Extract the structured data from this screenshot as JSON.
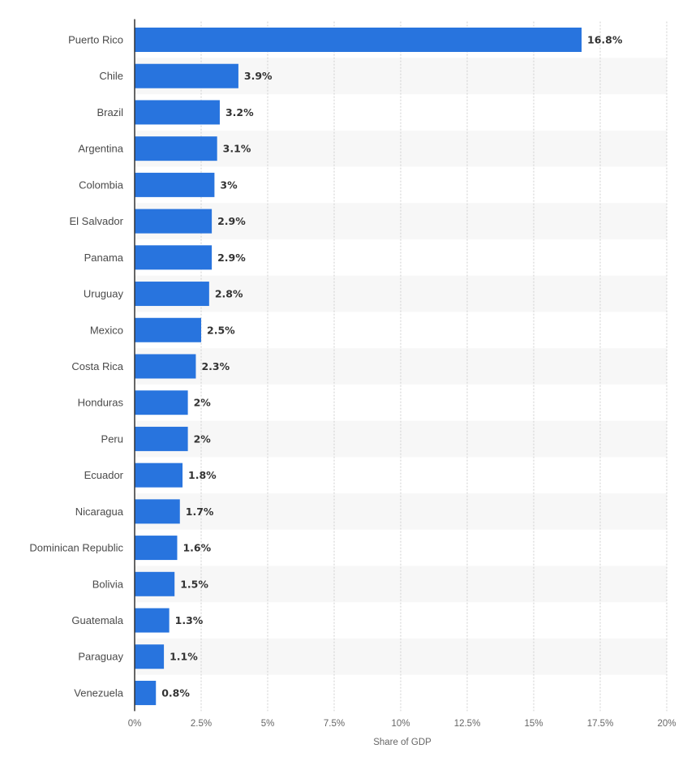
{
  "chart_data": {
    "type": "bar",
    "orientation": "horizontal",
    "categories": [
      "Puerto Rico",
      "Chile",
      "Brazil",
      "Argentina",
      "Colombia",
      "El Salvador",
      "Panama",
      "Uruguay",
      "Mexico",
      "Costa Rica",
      "Honduras",
      "Peru",
      "Ecuador",
      "Nicaragua",
      "Dominican Republic",
      "Bolivia",
      "Guatemala",
      "Paraguay",
      "Venezuela"
    ],
    "values": [
      16.8,
      3.9,
      3.2,
      3.1,
      3,
      2.9,
      2.9,
      2.8,
      2.5,
      2.3,
      2,
      2,
      1.8,
      1.7,
      1.6,
      1.5,
      1.3,
      1.1,
      0.8
    ],
    "value_labels": [
      "16.8%",
      "3.9%",
      "3.2%",
      "3.1%",
      "3%",
      "2.9%",
      "2.9%",
      "2.8%",
      "2.5%",
      "2.3%",
      "2%",
      "2%",
      "1.8%",
      "1.7%",
      "1.6%",
      "1.5%",
      "1.3%",
      "1.1%",
      "0.8%"
    ],
    "xlabel": "Share of GDP",
    "ylabel": "",
    "xlim": [
      0,
      20
    ],
    "x_ticks": [
      0,
      2.5,
      5,
      7.5,
      10,
      12.5,
      15,
      17.5,
      20
    ],
    "x_tick_labels": [
      "0%",
      "2.5%",
      "5%",
      "7.5%",
      "10%",
      "12.5%",
      "15%",
      "17.5%",
      "20%"
    ],
    "grid": true,
    "legend": "none"
  },
  "colors": {
    "bar": "#2874de",
    "band": "#f7f7f7",
    "grid": "#cfcfcf",
    "axis": "#333333"
  }
}
